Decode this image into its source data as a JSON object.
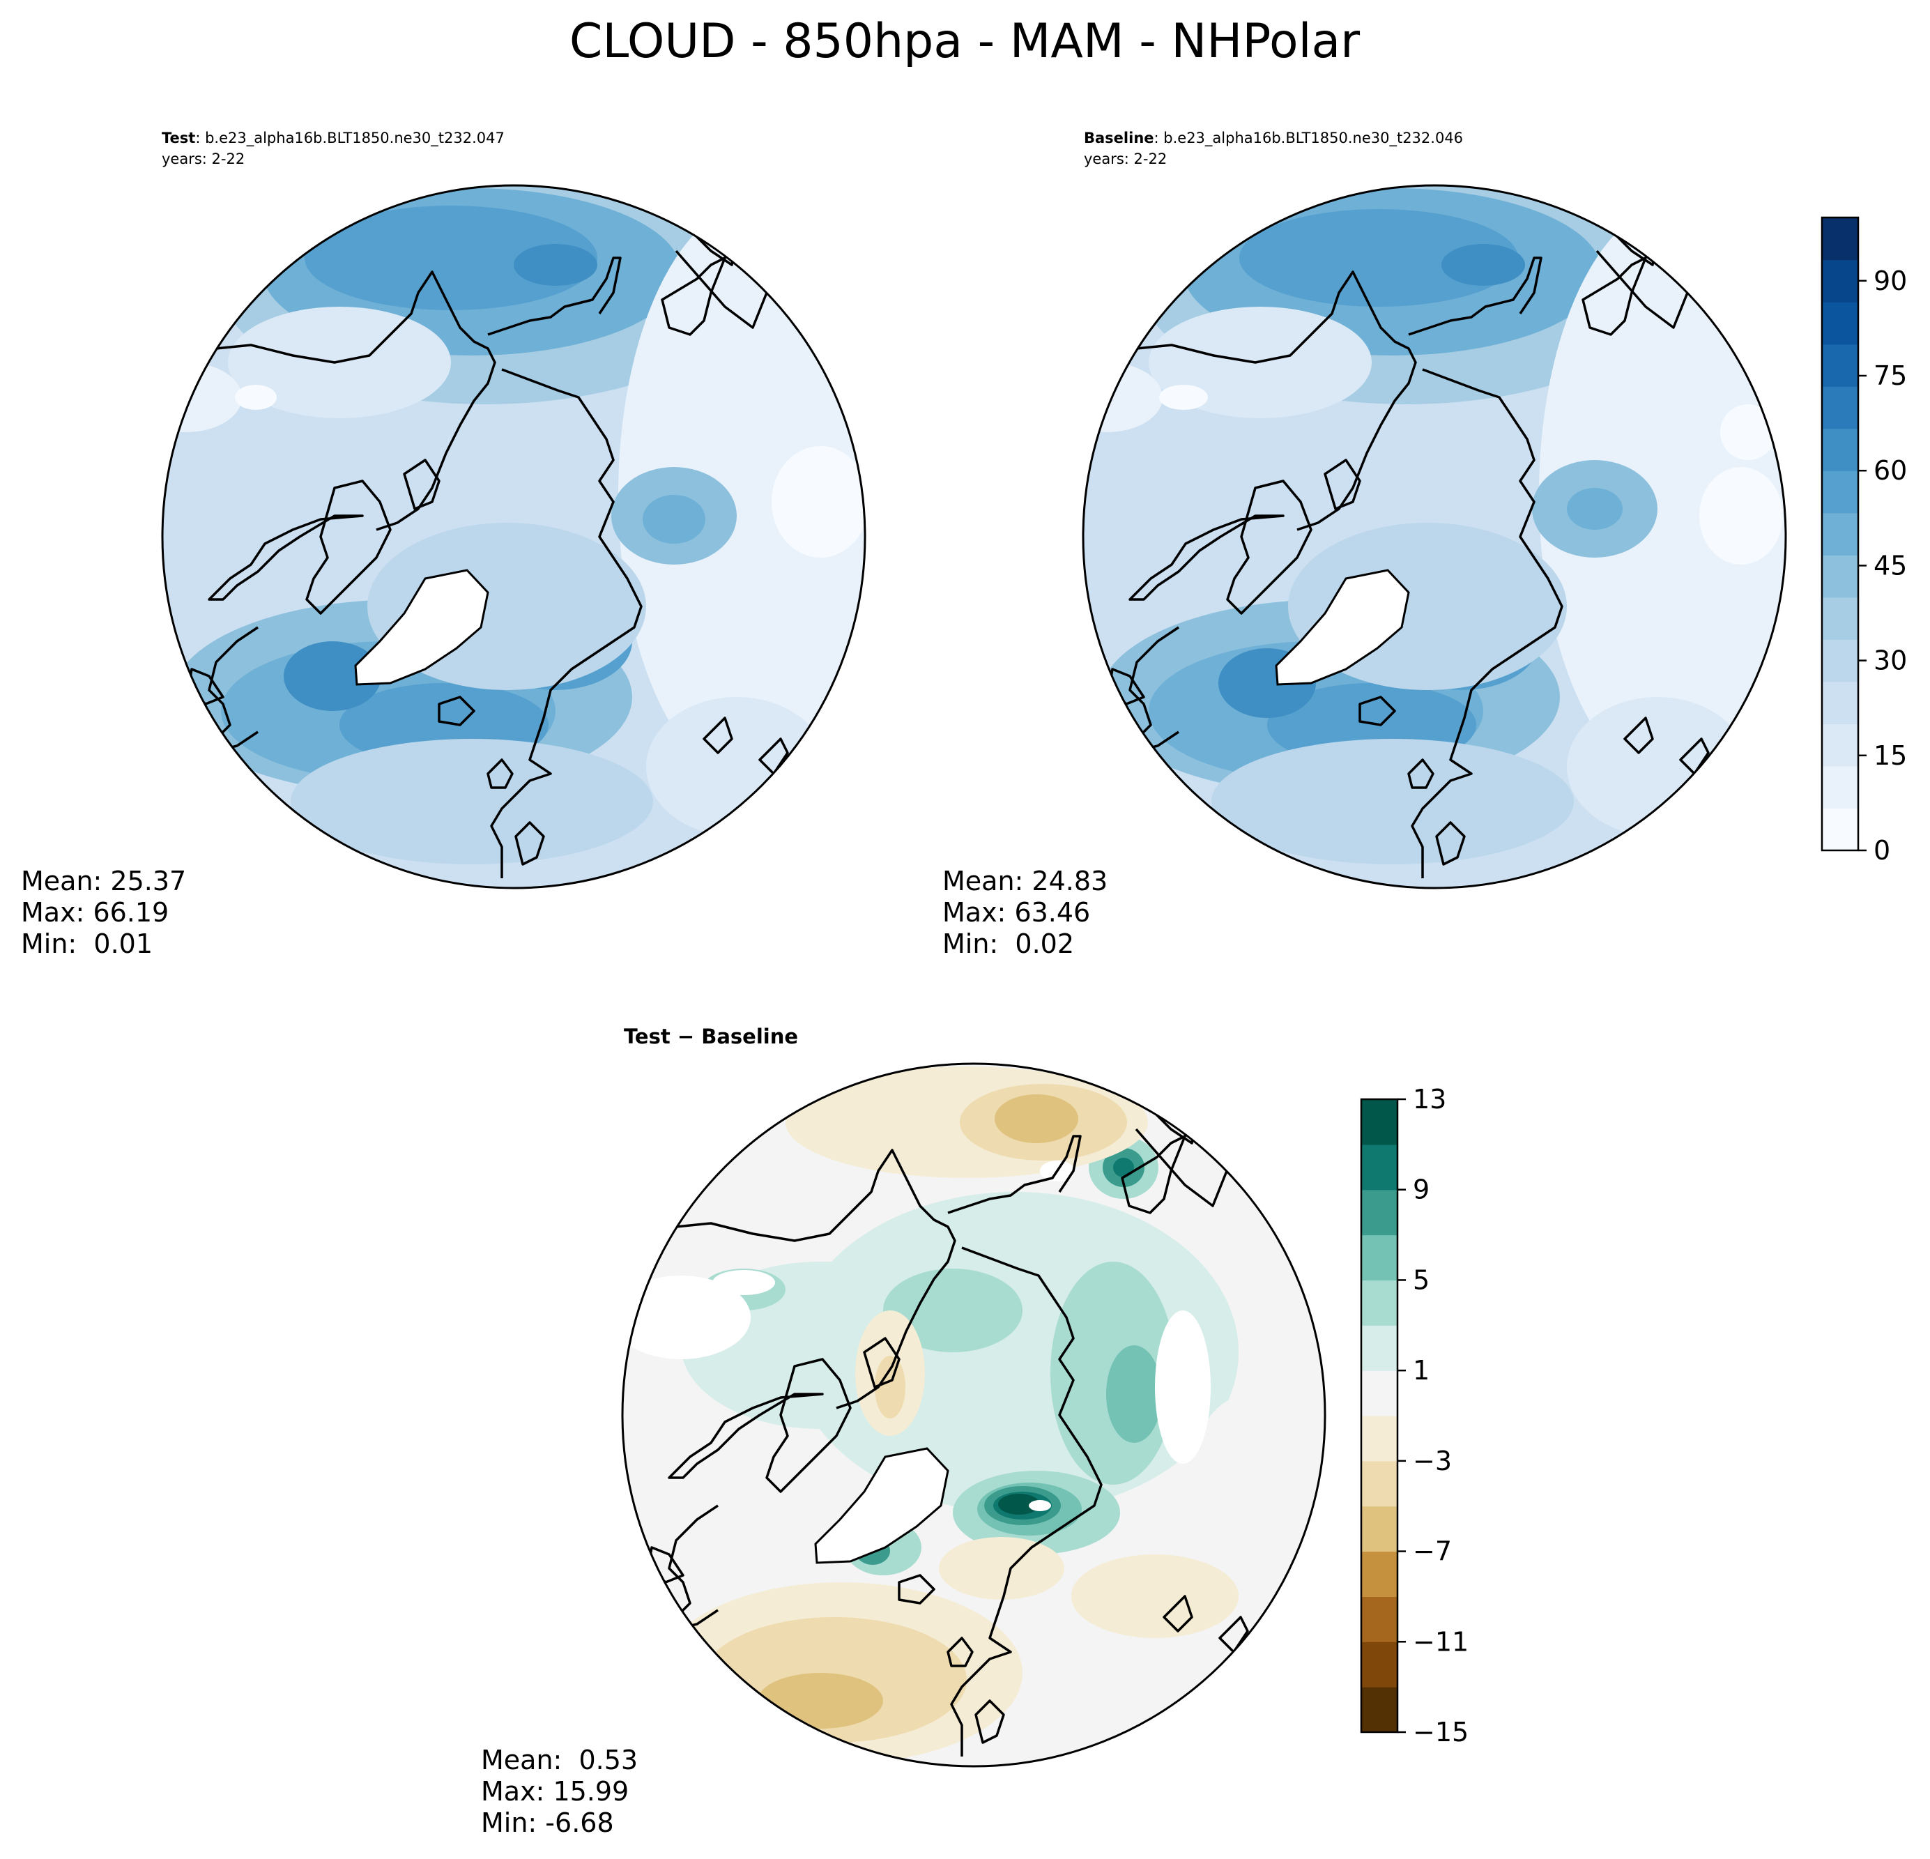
{
  "title": "CLOUD - 850hpa - MAM - NHPolar",
  "chart_data": [
    {
      "type": "heatmap",
      "panel": "test",
      "label_bold": "Test",
      "label_rest": ": b.e23_alpha16b.BLT1850.ne30_t232.047",
      "years": "years: 2-22",
      "projection": "north polar stereographic",
      "stats": {
        "mean": "Mean: 25.37",
        "max": "Max: 66.19",
        "min": "Min:  0.01"
      },
      "colormap": "Blues",
      "levels": [
        0,
        100
      ]
    },
    {
      "type": "heatmap",
      "panel": "baseline",
      "label_bold": "Baseline",
      "label_rest": ": b.e23_alpha16b.BLT1850.ne30_t232.046",
      "years": "years: 2-22",
      "projection": "north polar stereographic",
      "stats": {
        "mean": "Mean: 24.83",
        "max": "Max: 63.46",
        "min": "Min:  0.02"
      },
      "colormap": "Blues",
      "colorbar": {
        "ticks": [
          "0",
          "15",
          "30",
          "45",
          "60",
          "75",
          "90"
        ],
        "range": [
          0,
          100
        ]
      }
    },
    {
      "type": "heatmap",
      "panel": "difference",
      "label": "Test − Baseline",
      "projection": "north polar stereographic",
      "stats": {
        "mean": "Mean:  0.53",
        "max": "Max: 15.99",
        "min": "Min: -6.68"
      },
      "colormap": "BrBG",
      "colorbar": {
        "ticks": [
          "13",
          "9",
          "5",
          "1",
          "−3",
          "−7",
          "−11",
          "−15"
        ],
        "range": [
          -15,
          13
        ]
      }
    }
  ],
  "colors": {
    "blues": [
      "#f7fbff",
      "#e9f2fb",
      "#dbe9f6",
      "#cde0f1",
      "#bcd7eb",
      "#a6cde3",
      "#8cc0dd",
      "#6fb0d6",
      "#55a0cf",
      "#3f8fc4",
      "#2b7bba",
      "#1967ad",
      "#0b559f",
      "#08468b",
      "#08306b"
    ],
    "brbg": [
      "#543005",
      "#7f470a",
      "#a5661e",
      "#c6913f",
      "#dfc27d",
      "#eedcb0",
      "#f5ecd5",
      "#f3f4f3",
      "#d6ede9",
      "#a9dcd1",
      "#73c2b4",
      "#3b9c8e",
      "#0f7970",
      "#01584a"
    ]
  }
}
